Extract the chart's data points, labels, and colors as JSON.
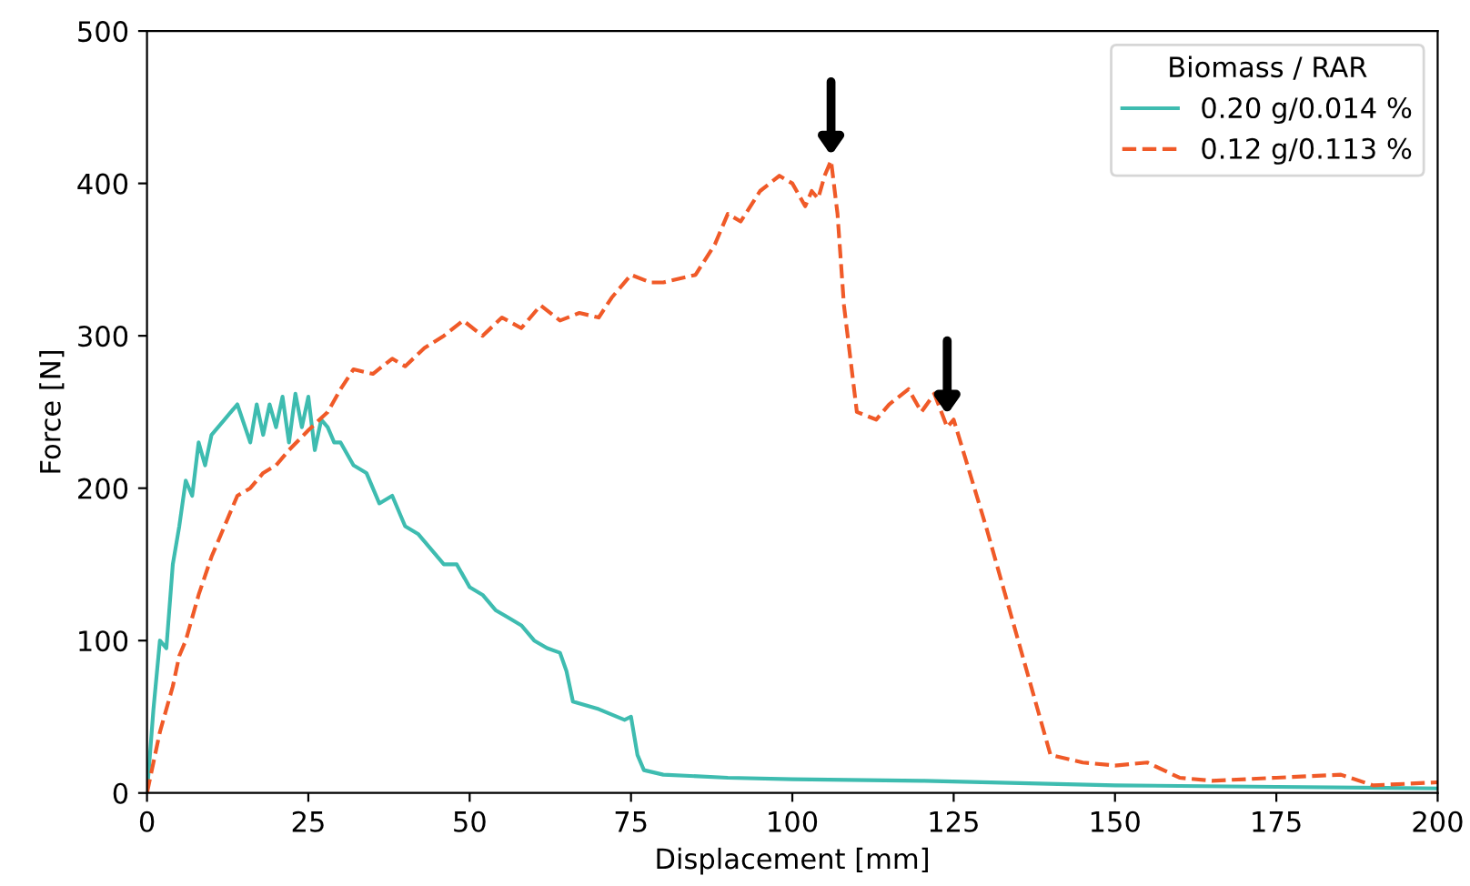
{
  "chart_data": {
    "type": "line",
    "xlabel": "Displacement [mm]",
    "ylabel": "Force [N]",
    "legend_title": "Biomass / RAR",
    "legend": "top right",
    "grid": false,
    "xlim": [
      0,
      200
    ],
    "ylim": [
      0,
      500
    ],
    "xticks": [
      0,
      25,
      50,
      75,
      100,
      125,
      150,
      175,
      200
    ],
    "yticks": [
      0,
      100,
      200,
      300,
      400,
      500
    ],
    "series": [
      {
        "name": "0.20 g/0.014 %",
        "color": "#3ebcb0",
        "line_style": "solid",
        "x": [
          0,
          1,
          2,
          3,
          4,
          5,
          6,
          7,
          8,
          9,
          10,
          12,
          14,
          16,
          17,
          18,
          19,
          20,
          21,
          22,
          23,
          24,
          25,
          26,
          27,
          28,
          29,
          30,
          32,
          34,
          36,
          38,
          40,
          42,
          44,
          46,
          48,
          50,
          52,
          54,
          56,
          58,
          60,
          62,
          64,
          65,
          66,
          70,
          74,
          75,
          76,
          77,
          80,
          90,
          100,
          120,
          150,
          175,
          200
        ],
        "values": [
          0,
          55,
          100,
          95,
          150,
          175,
          205,
          195,
          230,
          215,
          235,
          245,
          255,
          230,
          255,
          235,
          255,
          240,
          260,
          230,
          262,
          240,
          260,
          225,
          245,
          240,
          230,
          230,
          215,
          210,
          190,
          195,
          175,
          170,
          160,
          150,
          150,
          135,
          130,
          120,
          115,
          110,
          100,
          95,
          92,
          80,
          60,
          55,
          48,
          50,
          25,
          15,
          12,
          10,
          9,
          8,
          5,
          4,
          3
        ]
      },
      {
        "name": "0.12 g/0.113 %",
        "color": "#f05a28",
        "line_style": "dashed",
        "x": [
          0,
          2,
          4,
          5,
          6,
          8,
          10,
          12,
          14,
          16,
          18,
          20,
          22,
          25,
          28,
          30,
          32,
          35,
          38,
          40,
          43,
          46,
          49,
          52,
          55,
          58,
          61,
          64,
          67,
          70,
          72,
          75,
          78,
          80,
          85,
          88,
          90,
          92,
          95,
          98,
          100,
          102,
          103,
          104,
          105,
          106,
          107,
          108,
          110,
          113,
          115,
          118,
          120,
          122,
          124,
          125,
          130,
          135,
          140,
          145,
          150,
          155,
          160,
          165,
          175,
          185,
          190,
          200
        ],
        "values": [
          0,
          40,
          70,
          90,
          100,
          130,
          155,
          175,
          195,
          200,
          210,
          215,
          225,
          238,
          250,
          265,
          278,
          275,
          285,
          280,
          292,
          300,
          310,
          300,
          312,
          305,
          320,
          310,
          315,
          312,
          325,
          340,
          335,
          335,
          340,
          360,
          380,
          375,
          395,
          405,
          400,
          385,
          395,
          390,
          405,
          415,
          380,
          320,
          250,
          245,
          255,
          265,
          250,
          262,
          240,
          245,
          175,
          100,
          25,
          20,
          18,
          20,
          10,
          8,
          10,
          12,
          5,
          7
        ]
      }
    ]
  }
}
